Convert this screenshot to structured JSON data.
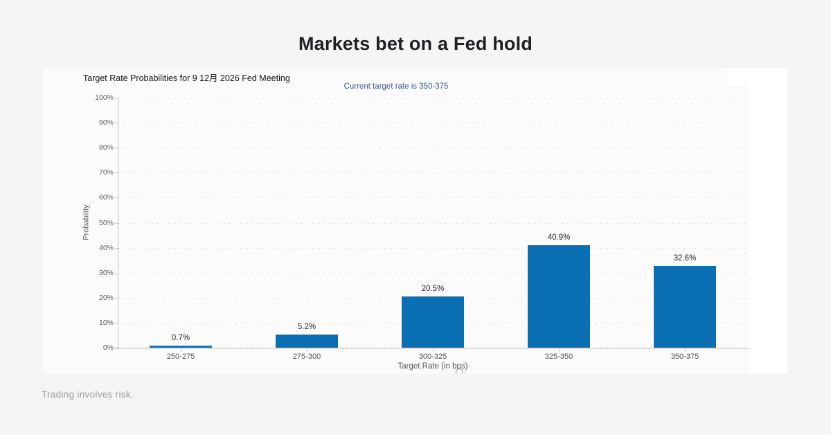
{
  "page": {
    "title": "Markets bet on a Fed hold",
    "footer": "Trading involves risk."
  },
  "chart_data": {
    "type": "bar",
    "title": "Target Rate Probabilities for 9 12月 2026 Fed Meeting",
    "subtitle": "Current target rate is 350-375",
    "xlabel": "Target Rate (in bps)",
    "ylabel": "Probability",
    "categories": [
      "250-275",
      "275-300",
      "300-325",
      "325-350",
      "350-375"
    ],
    "values": [
      0.7,
      5.2,
      20.5,
      40.9,
      32.6
    ],
    "value_labels": [
      "0.7%",
      "5.2%",
      "20.5%",
      "40.9%",
      "32.6%"
    ],
    "ylim": [
      0,
      100
    ],
    "ytick_step": 10,
    "ytick_labels": [
      "0%",
      "10%",
      "20%",
      "30%",
      "40%",
      "50%",
      "60%",
      "70%",
      "80%",
      "90%",
      "100%"
    ],
    "grid": "horizontal-dotted",
    "legend": "none",
    "colors": {
      "bar": "#0a6eb2",
      "subtitle_text": "#3d5a8e",
      "axis_text": "#55565b",
      "title_text": "#141417"
    }
  }
}
